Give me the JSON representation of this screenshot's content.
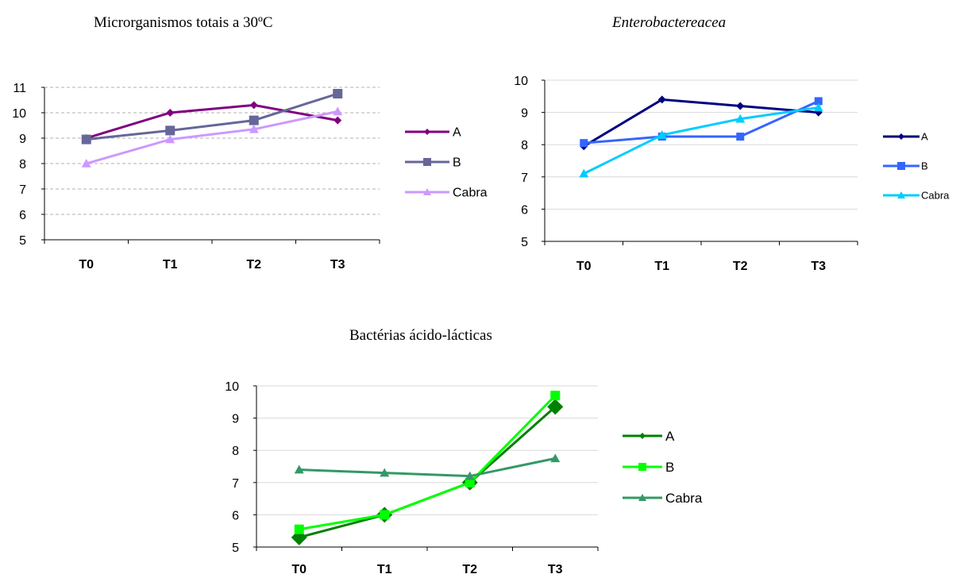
{
  "chart_data": [
    {
      "type": "line",
      "title": "Microrganismos totais a 30ºC",
      "title_italic": false,
      "categories": [
        "T0",
        "T1",
        "T2",
        "T3"
      ],
      "ylim": [
        5,
        11
      ],
      "yticks": [
        5,
        6,
        7,
        8,
        9,
        10,
        11
      ],
      "grid": "dashed",
      "legend_position": "right",
      "series": [
        {
          "name": "A",
          "values": [
            9.0,
            10.0,
            10.3,
            9.7
          ],
          "color": "#800080",
          "marker": "diamond"
        },
        {
          "name": "B",
          "values": [
            8.95,
            9.3,
            9.7,
            10.75
          ],
          "color": "#666699",
          "marker": "square"
        },
        {
          "name": "Cabra",
          "values": [
            8.0,
            8.95,
            9.35,
            10.05
          ],
          "color": "#CC99FF",
          "marker": "triangle"
        }
      ]
    },
    {
      "type": "line",
      "title": "Enterobactereacea",
      "title_italic": true,
      "categories": [
        "T0",
        "T1",
        "T2",
        "T3"
      ],
      "ylim": [
        5,
        10
      ],
      "yticks": [
        5,
        6,
        7,
        8,
        9,
        10
      ],
      "grid": "solid",
      "legend_position": "right",
      "series": [
        {
          "name": "A",
          "values": [
            7.95,
            9.4,
            9.2,
            9.0
          ],
          "color": "#000080",
          "marker": "diamond"
        },
        {
          "name": "B",
          "values": [
            8.05,
            8.25,
            8.25,
            9.35
          ],
          "color": "#3366FF",
          "marker": "square"
        },
        {
          "name": "Cabra",
          "values": [
            7.1,
            8.3,
            8.8,
            9.15
          ],
          "color": "#00CCFF",
          "marker": "triangle"
        }
      ]
    },
    {
      "type": "line",
      "title": "Bactérias ácido-lácticas",
      "title_italic": false,
      "categories": [
        "T0",
        "T1",
        "T2",
        "T3"
      ],
      "ylim": [
        5,
        10
      ],
      "yticks": [
        5,
        6,
        7,
        8,
        9,
        10
      ],
      "grid": "solid",
      "legend_position": "right",
      "series": [
        {
          "name": "A",
          "values": [
            5.3,
            6.0,
            7.0,
            9.35
          ],
          "color": "#008000",
          "marker": "diamond"
        },
        {
          "name": "B",
          "values": [
            5.55,
            6.0,
            7.0,
            9.7
          ],
          "color": "#00FF00",
          "marker": "square"
        },
        {
          "name": "Cabra",
          "values": [
            7.4,
            7.3,
            7.2,
            7.75
          ],
          "color": "#339966",
          "marker": "triangle"
        }
      ]
    }
  ]
}
